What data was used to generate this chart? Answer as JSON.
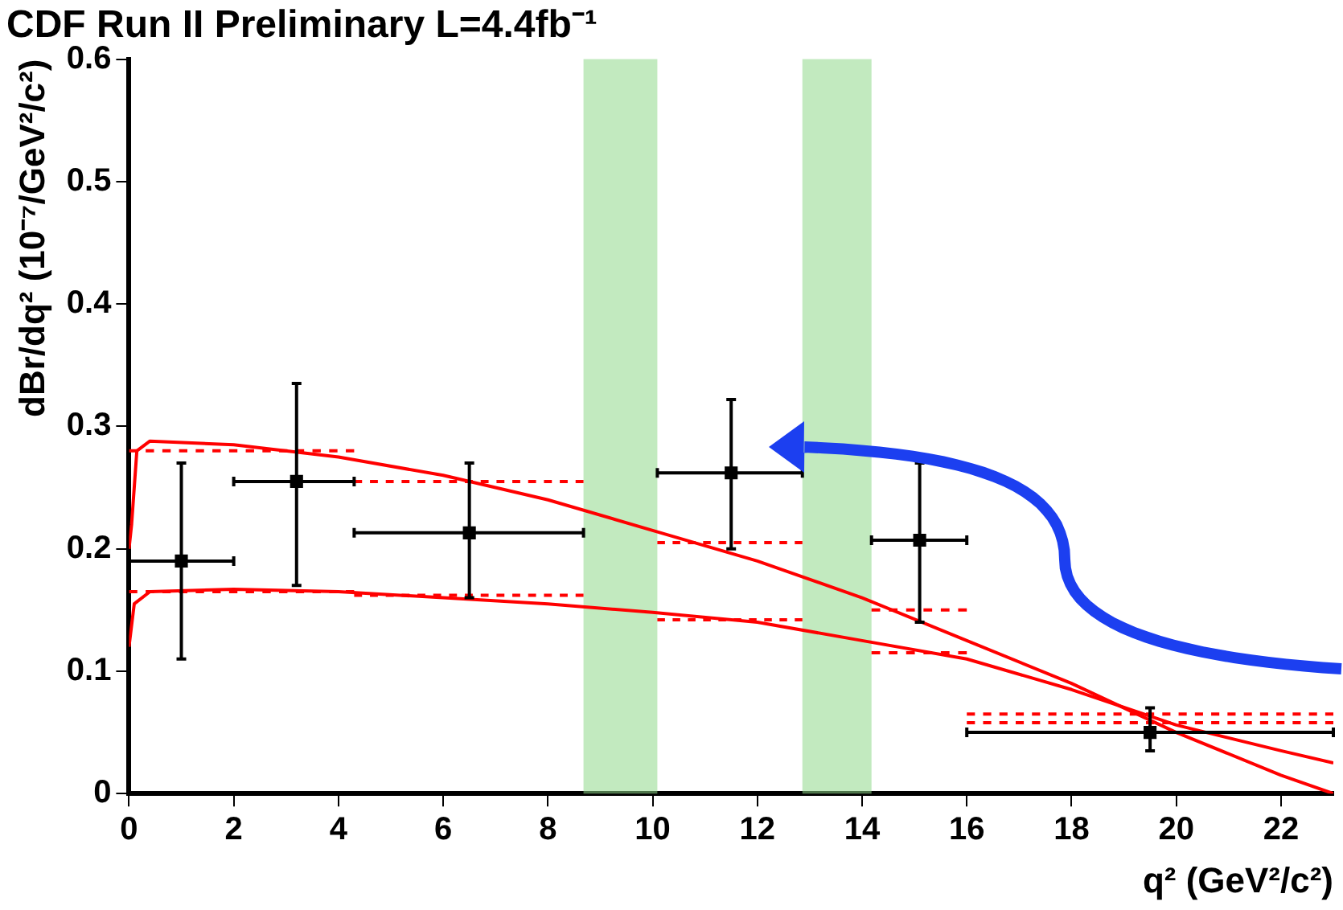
{
  "chart_data": {
    "type": "scatter",
    "title": "CDF Run II Preliminary L=4.4fb⁻¹",
    "xlabel": "q² (GeV²/c²)",
    "ylabel": "dBr/dq² (10⁻⁷/GeV²/c²)",
    "xlim": [
      0,
      23
    ],
    "xticks": [
      0,
      2,
      4,
      6,
      8,
      10,
      12,
      14,
      16,
      18,
      20,
      22
    ],
    "ylim": [
      0,
      0.6
    ],
    "yticks": [
      0,
      0.1,
      0.2,
      0.3,
      0.4,
      0.5,
      0.6
    ],
    "grid": false,
    "legend": false,
    "marker": "square",
    "bands": [
      {
        "axis": "x",
        "from": 8.68,
        "to": 10.09,
        "color": "#8fd88a"
      },
      {
        "axis": "x",
        "from": 12.86,
        "to": 14.18,
        "color": "#8fd88a"
      }
    ],
    "series": [
      {
        "type": "line",
        "color": "#ff0000",
        "marker": "none",
        "line_style": "solid",
        "x": [
          0,
          0.05,
          0.15,
          0.4,
          2,
          4,
          6,
          8,
          10,
          12,
          14,
          16,
          18,
          20,
          22,
          23
        ],
        "values": [
          0.2,
          0.22,
          0.28,
          0.288,
          0.285,
          0.275,
          0.26,
          0.24,
          0.215,
          0.19,
          0.16,
          0.125,
          0.09,
          0.05,
          0.015,
          0
        ]
      },
      {
        "type": "line",
        "color": "#ff0000",
        "marker": "none",
        "line_style": "solid",
        "x": [
          0,
          0.1,
          0.4,
          2,
          4,
          6,
          8,
          10,
          12,
          14,
          16,
          18,
          20,
          22,
          23
        ],
        "values": [
          0.12,
          0.155,
          0.165,
          0.167,
          0.165,
          0.16,
          0.155,
          0.148,
          0.14,
          0.125,
          0.11,
          0.085,
          0.056,
          0.035,
          0.025
        ]
      },
      {
        "type": "line",
        "color": "#ff0000",
        "marker": "none",
        "line_style": "dashed",
        "x": [
          0,
          4.3
        ],
        "values": [
          0.28,
          0.28
        ]
      },
      {
        "type": "line",
        "color": "#ff0000",
        "marker": "none",
        "line_style": "dashed",
        "x": [
          4.3,
          8.68
        ],
        "values": [
          0.255,
          0.255
        ]
      },
      {
        "type": "line",
        "color": "#ff0000",
        "marker": "none",
        "line_style": "dashed",
        "x": [
          10.09,
          12.86
        ],
        "values": [
          0.205,
          0.205
        ]
      },
      {
        "type": "line",
        "color": "#ff0000",
        "marker": "none",
        "line_style": "dashed",
        "x": [
          14.18,
          16
        ],
        "values": [
          0.15,
          0.15
        ]
      },
      {
        "type": "line",
        "color": "#ff0000",
        "marker": "none",
        "line_style": "dashed",
        "x": [
          16,
          23
        ],
        "values": [
          0.065,
          0.065
        ]
      },
      {
        "type": "line",
        "color": "#ff0000",
        "marker": "none",
        "line_style": "dashed",
        "x": [
          0,
          4.3
        ],
        "values": [
          0.165,
          0.165
        ]
      },
      {
        "type": "line",
        "color": "#ff0000",
        "marker": "none",
        "line_style": "dashed",
        "x": [
          4.3,
          8.68
        ],
        "values": [
          0.162,
          0.162
        ]
      },
      {
        "type": "line",
        "color": "#ff0000",
        "marker": "none",
        "line_style": "dashed",
        "x": [
          10.09,
          12.86
        ],
        "values": [
          0.142,
          0.142
        ]
      },
      {
        "type": "line",
        "color": "#ff0000",
        "marker": "none",
        "line_style": "dashed",
        "x": [
          14.18,
          16
        ],
        "values": [
          0.115,
          0.115
        ]
      },
      {
        "type": "line",
        "color": "#ff0000",
        "marker": "none",
        "line_style": "dashed",
        "x": [
          16,
          23
        ],
        "values": [
          0.058,
          0.058
        ]
      },
      {
        "color": "#000000",
        "x": [
          1.0,
          3.2,
          6.5,
          11.5,
          15.1,
          19.5
        ],
        "values": [
          0.19,
          0.255,
          0.213,
          0.262,
          0.207,
          0.05
        ],
        "errors": [
          [
            0.11,
            0.27
          ],
          [
            0.17,
            0.335
          ],
          [
            0.16,
            0.27
          ],
          [
            0.2,
            0.322
          ],
          [
            0.14,
            0.27
          ],
          [
            0.035,
            0.07
          ]
        ],
        "xerrors": [
          [
            0,
            2
          ],
          [
            2,
            4.3
          ],
          [
            4.3,
            8.68
          ],
          [
            10.09,
            12.86
          ],
          [
            14.18,
            16
          ],
          [
            16,
            23
          ]
        ]
      }
    ]
  }
}
